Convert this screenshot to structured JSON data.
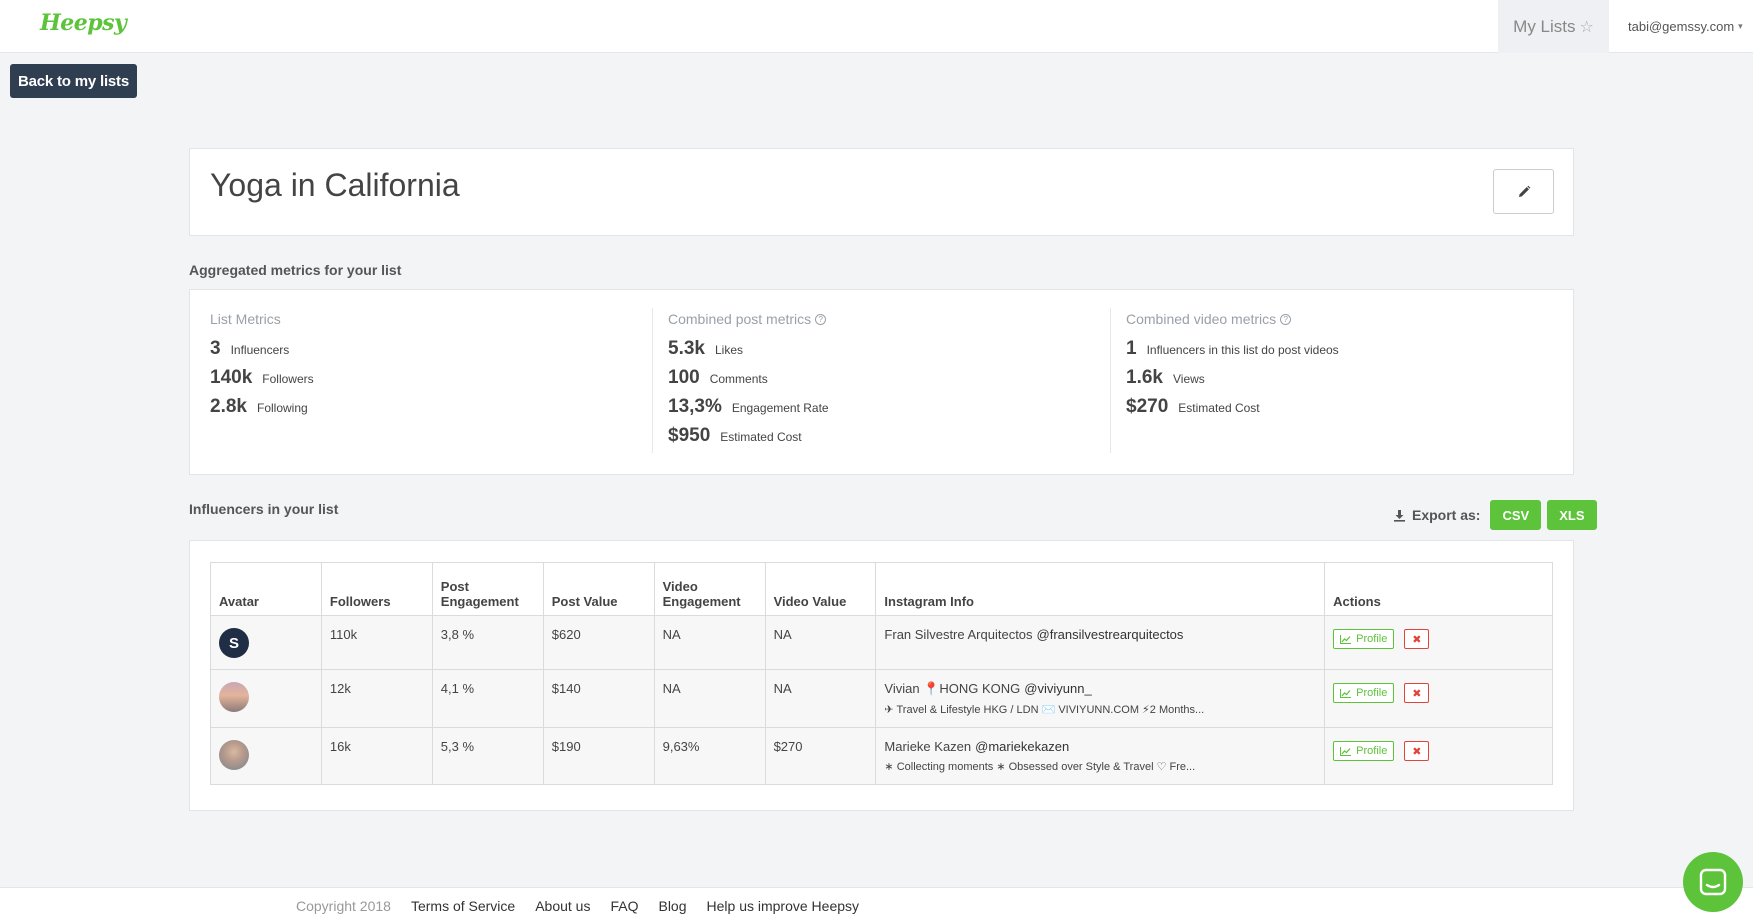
{
  "nav": {
    "logo": "Heepsy",
    "my_lists": "My Lists",
    "account_email": "tabi@gemssy.com"
  },
  "back_button": "Back to my lists",
  "list": {
    "title": "Yoga in California"
  },
  "metrics": {
    "section_label": "Aggregated metrics for your list",
    "list_metrics": {
      "heading": "List Metrics",
      "rows": [
        {
          "value": "3",
          "label": "Influencers"
        },
        {
          "value": "140k",
          "label": "Followers"
        },
        {
          "value": "2.8k",
          "label": "Following"
        }
      ]
    },
    "post_metrics": {
      "heading": "Combined post metrics",
      "rows": [
        {
          "value": "5.3k",
          "label": "Likes"
        },
        {
          "value": "100",
          "label": "Comments"
        },
        {
          "value": "13,3%",
          "label": "Engagement Rate"
        },
        {
          "value": "$950",
          "label": "Estimated Cost"
        }
      ]
    },
    "video_metrics": {
      "heading": "Combined video metrics",
      "rows": [
        {
          "value": "1",
          "label": "Influencers in this list do post videos"
        },
        {
          "value": "1.6k",
          "label": "Views"
        },
        {
          "value": "$270",
          "label": "Estimated Cost"
        }
      ]
    }
  },
  "influencers": {
    "section_label": "Influencers in your list",
    "export_label": "Export as:",
    "export_csv": "CSV",
    "export_xls": "XLS",
    "columns": [
      "Avatar",
      "Followers",
      "Post Engagement",
      "Post Value",
      "Video Engagement",
      "Video Value",
      "Instagram Info",
      "Actions"
    ],
    "rows": [
      {
        "avatar_text": "S",
        "followers": "110k",
        "post_engagement": "3,8 %",
        "post_value": "$620",
        "video_engagement": "NA",
        "video_value": "NA",
        "name": "Fran Silvestre Arquitectos",
        "handle": "@fransilvestrearquitectos",
        "bio": ""
      },
      {
        "avatar_text": "",
        "followers": "12k",
        "post_engagement": "4,1 %",
        "post_value": "$140",
        "video_engagement": "NA",
        "video_value": "NA",
        "name": "Vivian 📍HONG KONG",
        "handle": "@viviyunn_",
        "bio": "✈ Travel & Lifestyle HKG / LDN ✉️ VIVIYUNN.COM ⚡2 Months..."
      },
      {
        "avatar_text": "",
        "followers": "16k",
        "post_engagement": "5,3 %",
        "post_value": "$190",
        "video_engagement": "9,63%",
        "video_value": "$270",
        "name": "Marieke Kazen",
        "handle": "@mariekekazen",
        "bio": "∗ Collecting moments ∗ Obsessed over Style & Travel ♡ Fre..."
      }
    ],
    "profile_label": "Profile"
  },
  "footer": {
    "copyright": "Copyright 2018",
    "links": [
      "Terms of Service",
      "About us",
      "FAQ",
      "Blog",
      "Help us improve Heepsy"
    ]
  },
  "colors": {
    "brand_green": "#5cc33a",
    "dark_button": "#2f3e50",
    "danger_red": "#e0443a"
  }
}
